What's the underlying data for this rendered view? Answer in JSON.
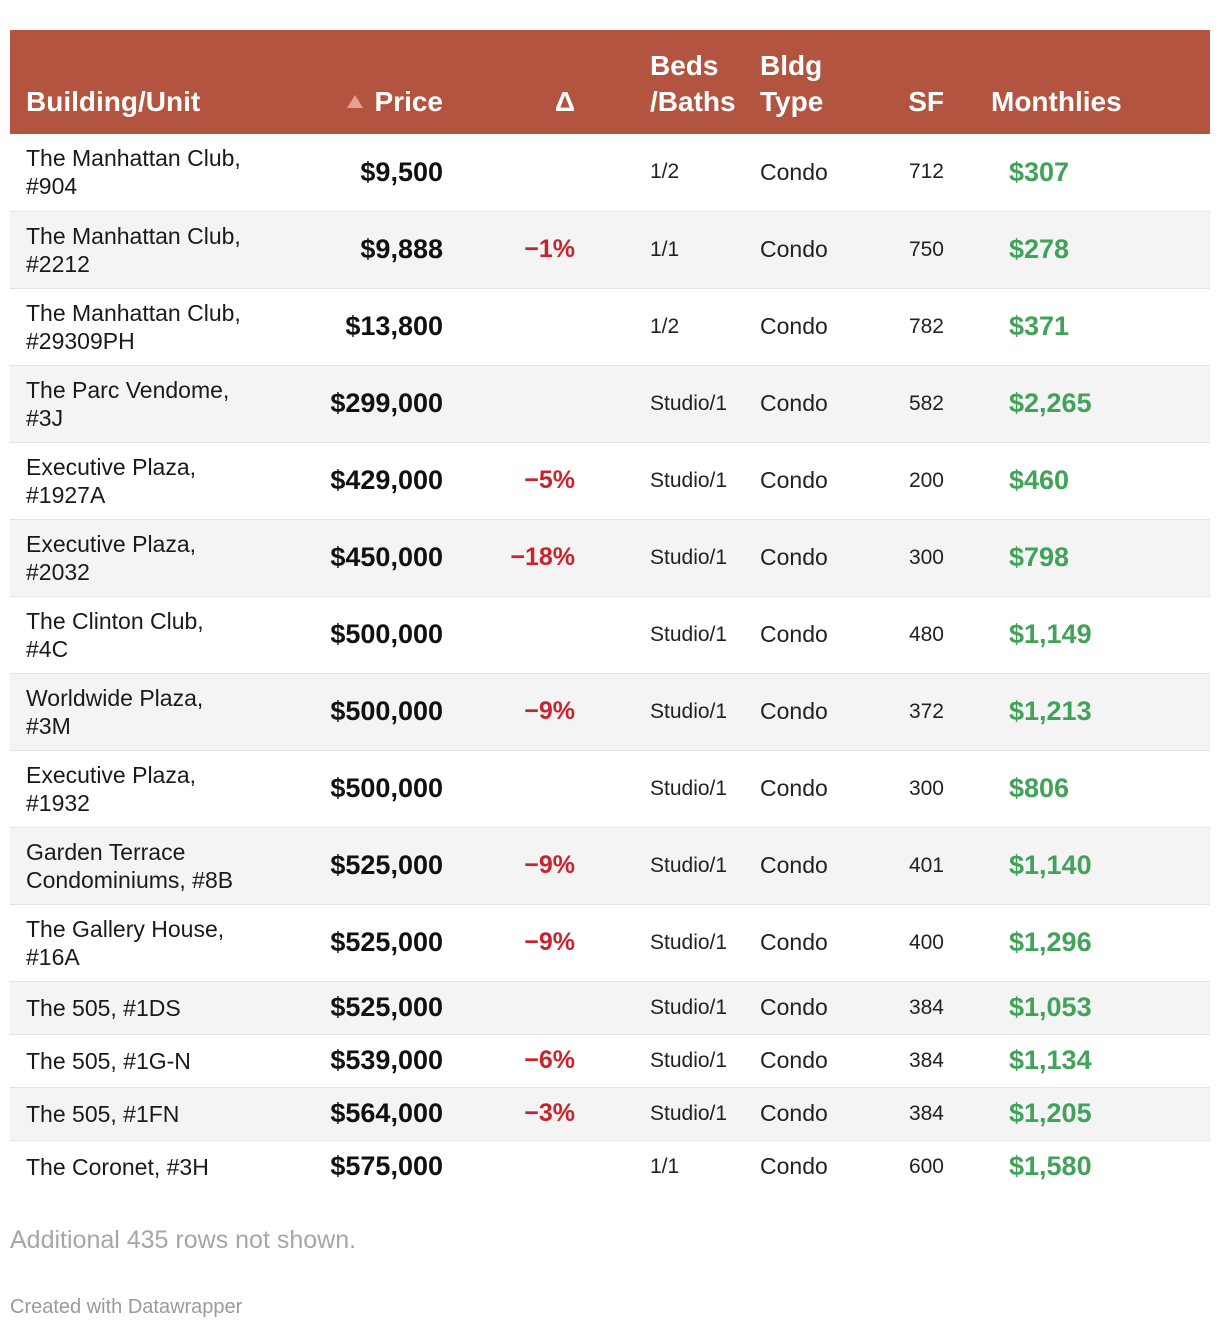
{
  "headers": {
    "building": "Building/Unit",
    "price": "Price",
    "delta": "Δ",
    "beds_line1": "Beds",
    "beds_line2": "/Baths",
    "type_line1": "Bldg",
    "type_line2": "Type",
    "sf": "SF",
    "monthlies": "Monthlies"
  },
  "sort": {
    "column": "price",
    "direction": "ascending",
    "icon": "sort-ascending-triangle"
  },
  "colors": {
    "header_bg": "#b35441",
    "delta_negative": "#c8242e",
    "monthlies": "#41a259",
    "stripe": "#f4f4f4"
  },
  "rows": [
    {
      "bldg_line1": "The Manhattan Club,",
      "bldg_line2": "#904",
      "price": "$9,500",
      "delta": "",
      "beds_baths": "1/2",
      "type": "Condo",
      "sf": "712",
      "monthlies": "$307"
    },
    {
      "bldg_line1": "The Manhattan Club,",
      "bldg_line2": "#2212",
      "price": "$9,888",
      "delta": "−1%",
      "beds_baths": "1/1",
      "type": "Condo",
      "sf": "750",
      "monthlies": "$278"
    },
    {
      "bldg_line1": "The Manhattan Club,",
      "bldg_line2": "#29309PH",
      "price": "$13,800",
      "delta": "",
      "beds_baths": "1/2",
      "type": "Condo",
      "sf": "782",
      "monthlies": "$371"
    },
    {
      "bldg_line1": "The Parc Vendome,",
      "bldg_line2": "#3J",
      "price": "$299,000",
      "delta": "",
      "beds_baths": "Studio/1",
      "type": "Condo",
      "sf": "582",
      "monthlies": "$2,265"
    },
    {
      "bldg_line1": "Executive Plaza,",
      "bldg_line2": "#1927A",
      "price": "$429,000",
      "delta": "−5%",
      "beds_baths": "Studio/1",
      "type": "Condo",
      "sf": "200",
      "monthlies": "$460"
    },
    {
      "bldg_line1": "Executive Plaza,",
      "bldg_line2": "#2032",
      "price": "$450,000",
      "delta": "−18%",
      "beds_baths": "Studio/1",
      "type": "Condo",
      "sf": "300",
      "monthlies": "$798"
    },
    {
      "bldg_line1": "The Clinton Club,",
      "bldg_line2": "#4C",
      "price": "$500,000",
      "delta": "",
      "beds_baths": "Studio/1",
      "type": "Condo",
      "sf": "480",
      "monthlies": "$1,149"
    },
    {
      "bldg_line1": "Worldwide Plaza,",
      "bldg_line2": "#3M",
      "price": "$500,000",
      "delta": "−9%",
      "beds_baths": "Studio/1",
      "type": "Condo",
      "sf": "372",
      "monthlies": "$1,213"
    },
    {
      "bldg_line1": "Executive Plaza,",
      "bldg_line2": "#1932",
      "price": "$500,000",
      "delta": "",
      "beds_baths": "Studio/1",
      "type": "Condo",
      "sf": "300",
      "monthlies": "$806"
    },
    {
      "bldg_line1": "Garden Terrace",
      "bldg_line2": "Condominiums, #8B",
      "price": "$525,000",
      "delta": "−9%",
      "beds_baths": "Studio/1",
      "type": "Condo",
      "sf": "401",
      "monthlies": "$1,140"
    },
    {
      "bldg_line1": "The Gallery House,",
      "bldg_line2": "#16A",
      "price": "$525,000",
      "delta": "−9%",
      "beds_baths": "Studio/1",
      "type": "Condo",
      "sf": "400",
      "monthlies": "$1,296"
    },
    {
      "bldg_line1": "The 505, #1DS",
      "bldg_line2": "",
      "price": "$525,000",
      "delta": "",
      "beds_baths": "Studio/1",
      "type": "Condo",
      "sf": "384",
      "monthlies": "$1,053"
    },
    {
      "bldg_line1": "The 505, #1G-N",
      "bldg_line2": "",
      "price": "$539,000",
      "delta": "−6%",
      "beds_baths": "Studio/1",
      "type": "Condo",
      "sf": "384",
      "monthlies": "$1,134"
    },
    {
      "bldg_line1": "The 505, #1FN",
      "bldg_line2": "",
      "price": "$564,000",
      "delta": "−3%",
      "beds_baths": "Studio/1",
      "type": "Condo",
      "sf": "384",
      "monthlies": "$1,205"
    },
    {
      "bldg_line1": "The Coronet, #3H",
      "bldg_line2": "",
      "price": "$575,000",
      "delta": "",
      "beds_baths": "1/1",
      "type": "Condo",
      "sf": "600",
      "monthlies": "$1,580"
    }
  ],
  "notes": "Additional 435 rows not shown.",
  "credit": "Created with Datawrapper"
}
